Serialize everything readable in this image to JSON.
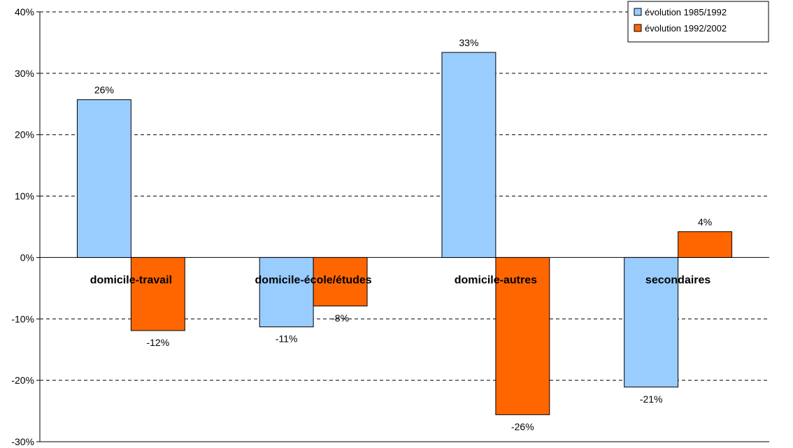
{
  "chart_data": {
    "type": "bar",
    "categories": [
      "domicile-travail",
      "domicile-école/études",
      "domicile-autres",
      "secondaires"
    ],
    "series": [
      {
        "name": "évolution 1985/1992",
        "values": [
          25.7,
          -11.3,
          33.4,
          -21.1
        ],
        "labels": [
          "26%",
          "-11%",
          "33%",
          "-21%"
        ],
        "color": "#99ccff"
      },
      {
        "name": "évolution 1992/2002",
        "values": [
          -11.9,
          -7.9,
          -25.6,
          4.2
        ],
        "labels": [
          "-12%",
          "-8%",
          "-26%",
          "4%"
        ],
        "color": "#ff6600"
      }
    ],
    "ylim": [
      -30,
      40
    ],
    "yticks": [
      -30,
      -20,
      -10,
      0,
      10,
      20,
      30,
      40
    ],
    "ytick_labels": [
      "-30%",
      "-20%",
      "-10%",
      "0%",
      "10%",
      "20%",
      "30%",
      "40%"
    ],
    "grid": true,
    "legend_position": "top-right",
    "title": "",
    "xlabel": "",
    "ylabel": ""
  }
}
